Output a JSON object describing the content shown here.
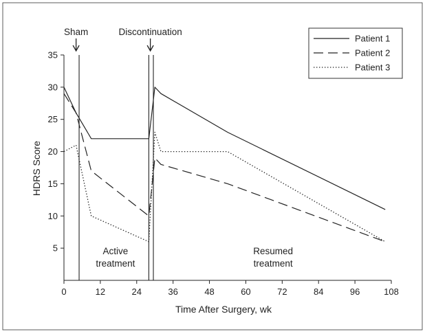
{
  "chart_data": {
    "type": "line",
    "title": "",
    "xlabel": "Time After Surgery, wk",
    "ylabel": "HDRS Score",
    "xlim": [
      0,
      108
    ],
    "ylim": [
      0,
      35
    ],
    "xticks": [
      0,
      12,
      24,
      36,
      48,
      60,
      72,
      84,
      96,
      108
    ],
    "yticks": [
      5,
      10,
      15,
      20,
      25,
      30,
      35
    ],
    "grid": false,
    "legend_position": "top-right",
    "series": [
      {
        "name": "Patient 1",
        "style": "solid",
        "color": "#222222",
        "x": [
          0,
          4,
          9,
          28,
          30,
          32,
          54,
          106
        ],
        "y": [
          30,
          26,
          22,
          22,
          30,
          29,
          23,
          11
        ]
      },
      {
        "name": "Patient 2",
        "style": "dashed",
        "color": "#222222",
        "x": [
          0,
          4,
          9,
          28,
          30,
          32,
          54,
          106
        ],
        "y": [
          29,
          26,
          17,
          10,
          19,
          18,
          15,
          6
        ]
      },
      {
        "name": "Patient 3",
        "style": "dotted",
        "color": "#222222",
        "x": [
          0,
          4,
          9,
          28,
          30,
          32,
          54,
          106
        ],
        "y": [
          20,
          21,
          10,
          6,
          23,
          20,
          20,
          6
        ]
      }
    ],
    "vertical_lines": [
      5,
      28,
      29.5
    ],
    "annotations": {
      "sham": {
        "text": "Sham",
        "x": 4
      },
      "discontinuation": {
        "text": "Discontinuation",
        "x": 28.5
      },
      "active": {
        "lines": [
          "Active",
          "treatment"
        ],
        "x": 17,
        "y": 3.5
      },
      "resumed": {
        "lines": [
          "Resumed",
          "treatment"
        ],
        "x": 69,
        "y": 3.5
      }
    }
  }
}
